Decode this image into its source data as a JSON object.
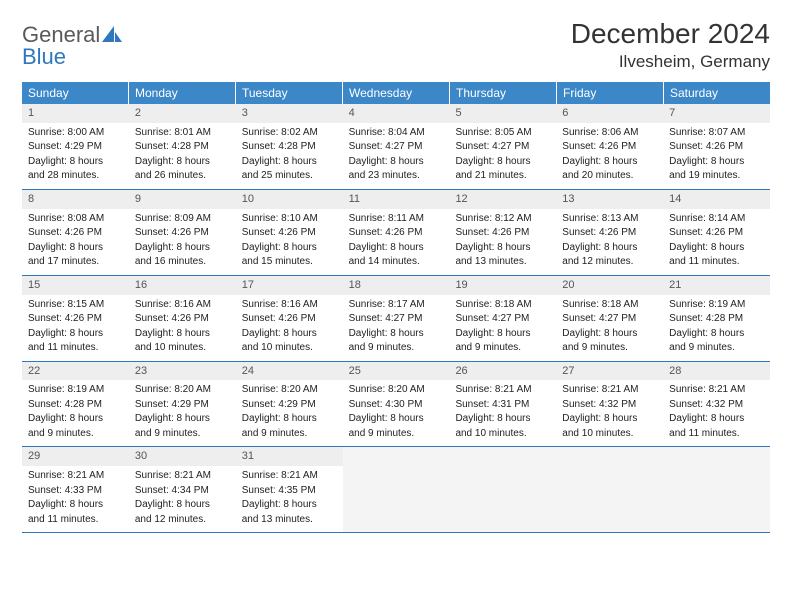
{
  "brand": {
    "name_part1": "General",
    "name_part2": "Blue"
  },
  "title": "December 2024",
  "location": "Ilvesheim, Germany",
  "colors": {
    "header_bg": "#3b87c8",
    "header_text": "#ffffff",
    "rule": "#2f78bd",
    "daynum_bg": "#eeeeee",
    "daynum_text": "#555555",
    "body_text": "#222222",
    "empty_bg": "#f4f4f4",
    "logo_gray": "#5a5a5a",
    "logo_blue": "#2f78bd"
  },
  "typography": {
    "title_fontsize": 28,
    "location_fontsize": 17,
    "dow_fontsize": 12,
    "daynum_fontsize": 11,
    "body_fontsize": 10
  },
  "days_of_week": [
    "Sunday",
    "Monday",
    "Tuesday",
    "Wednesday",
    "Thursday",
    "Friday",
    "Saturday"
  ],
  "weeks": [
    [
      {
        "num": "1",
        "sunrise": "Sunrise: 8:00 AM",
        "sunset": "Sunset: 4:29 PM",
        "day1": "Daylight: 8 hours",
        "day2": "and 28 minutes."
      },
      {
        "num": "2",
        "sunrise": "Sunrise: 8:01 AM",
        "sunset": "Sunset: 4:28 PM",
        "day1": "Daylight: 8 hours",
        "day2": "and 26 minutes."
      },
      {
        "num": "3",
        "sunrise": "Sunrise: 8:02 AM",
        "sunset": "Sunset: 4:28 PM",
        "day1": "Daylight: 8 hours",
        "day2": "and 25 minutes."
      },
      {
        "num": "4",
        "sunrise": "Sunrise: 8:04 AM",
        "sunset": "Sunset: 4:27 PM",
        "day1": "Daylight: 8 hours",
        "day2": "and 23 minutes."
      },
      {
        "num": "5",
        "sunrise": "Sunrise: 8:05 AM",
        "sunset": "Sunset: 4:27 PM",
        "day1": "Daylight: 8 hours",
        "day2": "and 21 minutes."
      },
      {
        "num": "6",
        "sunrise": "Sunrise: 8:06 AM",
        "sunset": "Sunset: 4:26 PM",
        "day1": "Daylight: 8 hours",
        "day2": "and 20 minutes."
      },
      {
        "num": "7",
        "sunrise": "Sunrise: 8:07 AM",
        "sunset": "Sunset: 4:26 PM",
        "day1": "Daylight: 8 hours",
        "day2": "and 19 minutes."
      }
    ],
    [
      {
        "num": "8",
        "sunrise": "Sunrise: 8:08 AM",
        "sunset": "Sunset: 4:26 PM",
        "day1": "Daylight: 8 hours",
        "day2": "and 17 minutes."
      },
      {
        "num": "9",
        "sunrise": "Sunrise: 8:09 AM",
        "sunset": "Sunset: 4:26 PM",
        "day1": "Daylight: 8 hours",
        "day2": "and 16 minutes."
      },
      {
        "num": "10",
        "sunrise": "Sunrise: 8:10 AM",
        "sunset": "Sunset: 4:26 PM",
        "day1": "Daylight: 8 hours",
        "day2": "and 15 minutes."
      },
      {
        "num": "11",
        "sunrise": "Sunrise: 8:11 AM",
        "sunset": "Sunset: 4:26 PM",
        "day1": "Daylight: 8 hours",
        "day2": "and 14 minutes."
      },
      {
        "num": "12",
        "sunrise": "Sunrise: 8:12 AM",
        "sunset": "Sunset: 4:26 PM",
        "day1": "Daylight: 8 hours",
        "day2": "and 13 minutes."
      },
      {
        "num": "13",
        "sunrise": "Sunrise: 8:13 AM",
        "sunset": "Sunset: 4:26 PM",
        "day1": "Daylight: 8 hours",
        "day2": "and 12 minutes."
      },
      {
        "num": "14",
        "sunrise": "Sunrise: 8:14 AM",
        "sunset": "Sunset: 4:26 PM",
        "day1": "Daylight: 8 hours",
        "day2": "and 11 minutes."
      }
    ],
    [
      {
        "num": "15",
        "sunrise": "Sunrise: 8:15 AM",
        "sunset": "Sunset: 4:26 PM",
        "day1": "Daylight: 8 hours",
        "day2": "and 11 minutes."
      },
      {
        "num": "16",
        "sunrise": "Sunrise: 8:16 AM",
        "sunset": "Sunset: 4:26 PM",
        "day1": "Daylight: 8 hours",
        "day2": "and 10 minutes."
      },
      {
        "num": "17",
        "sunrise": "Sunrise: 8:16 AM",
        "sunset": "Sunset: 4:26 PM",
        "day1": "Daylight: 8 hours",
        "day2": "and 10 minutes."
      },
      {
        "num": "18",
        "sunrise": "Sunrise: 8:17 AM",
        "sunset": "Sunset: 4:27 PM",
        "day1": "Daylight: 8 hours",
        "day2": "and 9 minutes."
      },
      {
        "num": "19",
        "sunrise": "Sunrise: 8:18 AM",
        "sunset": "Sunset: 4:27 PM",
        "day1": "Daylight: 8 hours",
        "day2": "and 9 minutes."
      },
      {
        "num": "20",
        "sunrise": "Sunrise: 8:18 AM",
        "sunset": "Sunset: 4:27 PM",
        "day1": "Daylight: 8 hours",
        "day2": "and 9 minutes."
      },
      {
        "num": "21",
        "sunrise": "Sunrise: 8:19 AM",
        "sunset": "Sunset: 4:28 PM",
        "day1": "Daylight: 8 hours",
        "day2": "and 9 minutes."
      }
    ],
    [
      {
        "num": "22",
        "sunrise": "Sunrise: 8:19 AM",
        "sunset": "Sunset: 4:28 PM",
        "day1": "Daylight: 8 hours",
        "day2": "and 9 minutes."
      },
      {
        "num": "23",
        "sunrise": "Sunrise: 8:20 AM",
        "sunset": "Sunset: 4:29 PM",
        "day1": "Daylight: 8 hours",
        "day2": "and 9 minutes."
      },
      {
        "num": "24",
        "sunrise": "Sunrise: 8:20 AM",
        "sunset": "Sunset: 4:29 PM",
        "day1": "Daylight: 8 hours",
        "day2": "and 9 minutes."
      },
      {
        "num": "25",
        "sunrise": "Sunrise: 8:20 AM",
        "sunset": "Sunset: 4:30 PM",
        "day1": "Daylight: 8 hours",
        "day2": "and 9 minutes."
      },
      {
        "num": "26",
        "sunrise": "Sunrise: 8:21 AM",
        "sunset": "Sunset: 4:31 PM",
        "day1": "Daylight: 8 hours",
        "day2": "and 10 minutes."
      },
      {
        "num": "27",
        "sunrise": "Sunrise: 8:21 AM",
        "sunset": "Sunset: 4:32 PM",
        "day1": "Daylight: 8 hours",
        "day2": "and 10 minutes."
      },
      {
        "num": "28",
        "sunrise": "Sunrise: 8:21 AM",
        "sunset": "Sunset: 4:32 PM",
        "day1": "Daylight: 8 hours",
        "day2": "and 11 minutes."
      }
    ],
    [
      {
        "num": "29",
        "sunrise": "Sunrise: 8:21 AM",
        "sunset": "Sunset: 4:33 PM",
        "day1": "Daylight: 8 hours",
        "day2": "and 11 minutes."
      },
      {
        "num": "30",
        "sunrise": "Sunrise: 8:21 AM",
        "sunset": "Sunset: 4:34 PM",
        "day1": "Daylight: 8 hours",
        "day2": "and 12 minutes."
      },
      {
        "num": "31",
        "sunrise": "Sunrise: 8:21 AM",
        "sunset": "Sunset: 4:35 PM",
        "day1": "Daylight: 8 hours",
        "day2": "and 13 minutes."
      },
      {
        "empty": true
      },
      {
        "empty": true
      },
      {
        "empty": true
      },
      {
        "empty": true
      }
    ]
  ]
}
